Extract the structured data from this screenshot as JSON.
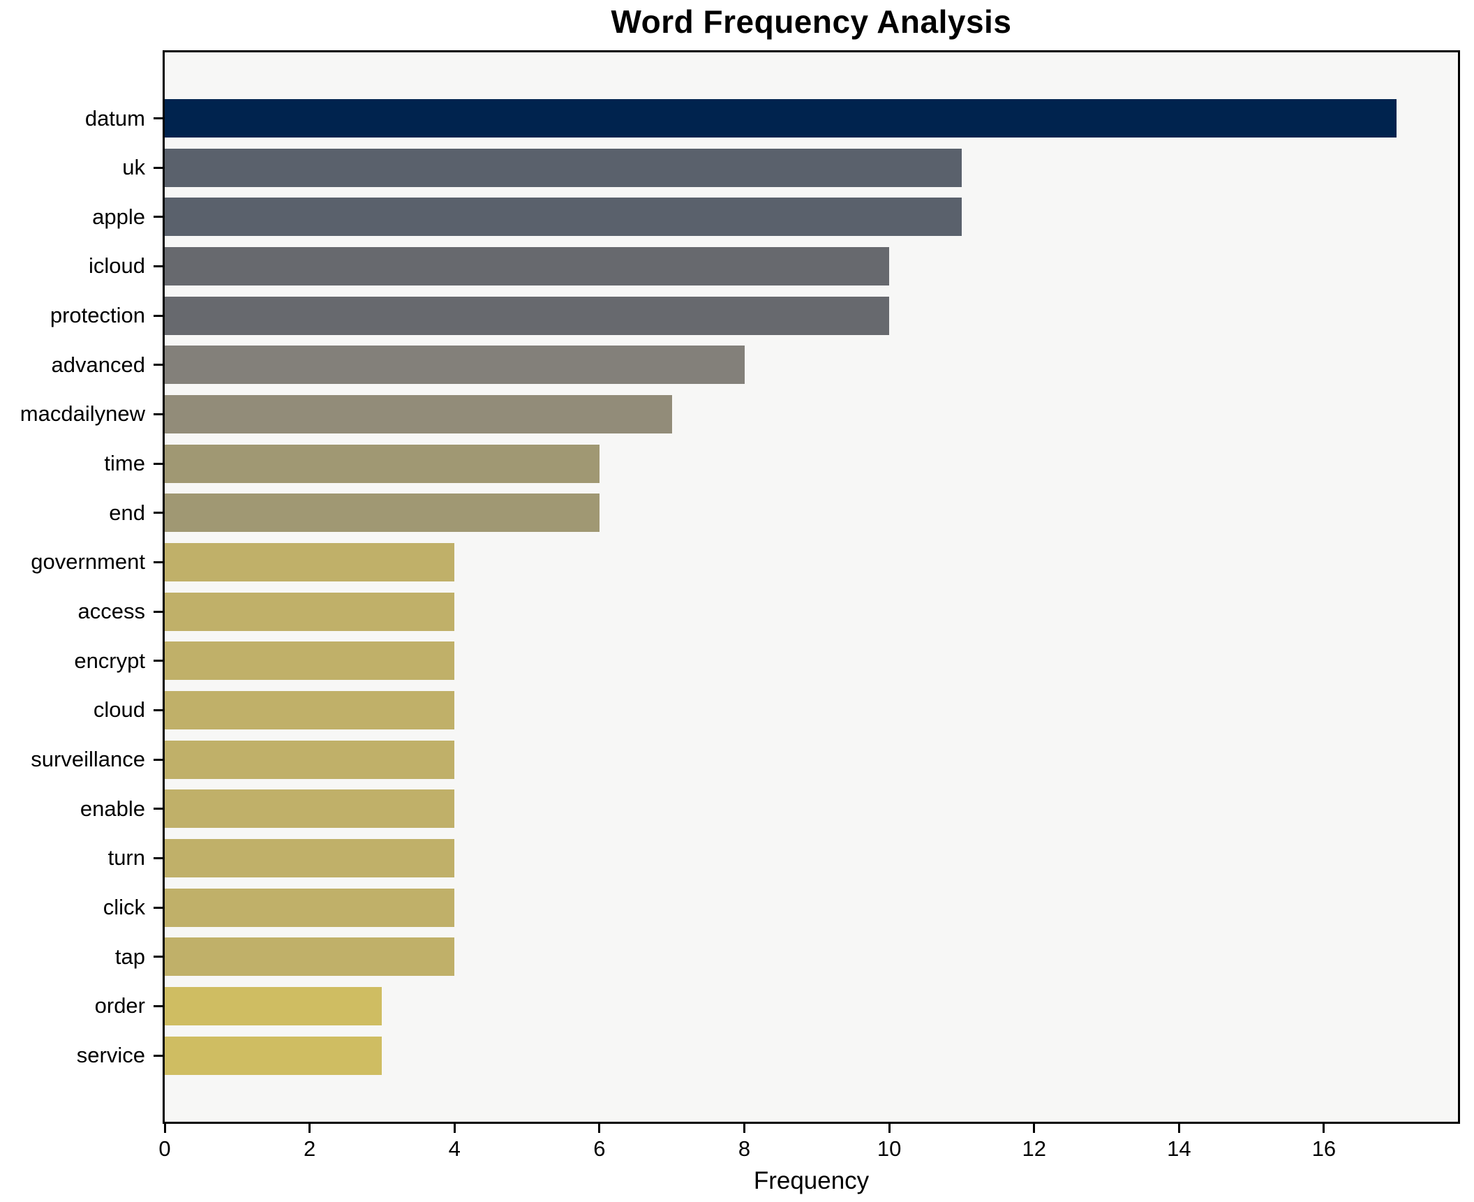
{
  "chart_data": {
    "type": "bar",
    "orientation": "horizontal",
    "title": "Word Frequency Analysis",
    "xlabel": "Frequency",
    "ylabel": "",
    "xlim": [
      0,
      17.85
    ],
    "x_ticks": [
      0,
      2,
      4,
      6,
      8,
      10,
      12,
      14,
      16
    ],
    "grid": false,
    "legend": "none",
    "plot_bg": "#f7f7f6",
    "figure_bg": "#ffffff",
    "spine_color": "#000000",
    "categories": [
      "datum",
      "uk",
      "apple",
      "icloud",
      "protection",
      "advanced",
      "macdailynew",
      "time",
      "end",
      "government",
      "access",
      "encrypt",
      "cloud",
      "surveillance",
      "enable",
      "turn",
      "click",
      "tap",
      "order",
      "service"
    ],
    "values": [
      17,
      11,
      11,
      10,
      10,
      8,
      7,
      6,
      6,
      4,
      4,
      4,
      4,
      4,
      4,
      4,
      4,
      4,
      3,
      3
    ],
    "bar_colors": [
      "#00234e",
      "#5a616c",
      "#5a616c",
      "#67696e",
      "#67696e",
      "#83807a",
      "#928c79",
      "#a09873",
      "#a09873",
      "#c0b069",
      "#c0b069",
      "#c0b069",
      "#c0b069",
      "#c0b069",
      "#c0b069",
      "#c0b069",
      "#c0b069",
      "#c0b069",
      "#cfbd62",
      "#cfbd62"
    ]
  }
}
